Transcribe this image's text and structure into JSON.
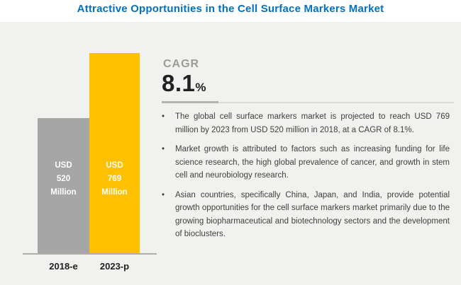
{
  "title": "Attractive Opportunities in the Cell Surface Markers Market",
  "cagr": {
    "label": "CAGR",
    "value": "8.1",
    "unit": "%"
  },
  "bullet_marker": "•",
  "bullets": [
    "The global cell surface markers market is projected to reach USD 769 million by 2023 from USD 520 million in 2018, at a CAGR of 8.1%.",
    "Market growth is attributed to factors such as increasing funding for life science research, the high global prevalence of cancer, and growth in stem cell and neurobiology research.",
    "Asian countries, specifically China, Japan, and India, provide potential growth opportunities for the cell surface markers market primarily due to the growing biopharmaceutical and biotechnology sectors and the development of bioclusters."
  ],
  "chart_data": {
    "type": "bar",
    "title": "Cell surface markers market size",
    "categories": [
      "2018-e",
      "2023-p"
    ],
    "values": [
      520,
      769
    ],
    "unit": "USD Million",
    "bar_labels": [
      [
        "USD",
        "520",
        "Million"
      ],
      [
        "USD",
        "769",
        "Million"
      ]
    ],
    "colors": [
      "#A6A6A6",
      "#FFC000"
    ],
    "ylim": [
      0,
      769
    ],
    "grid": false,
    "legend": "none",
    "xlabel": "",
    "ylabel": ""
  },
  "theme": {
    "title_color": "#0071C1",
    "panel_background": "#F1F1EF",
    "accent_yellow": "#FFC000",
    "bar_gray": "#A6A6A6",
    "body_text_color": "#3F3F3F"
  }
}
